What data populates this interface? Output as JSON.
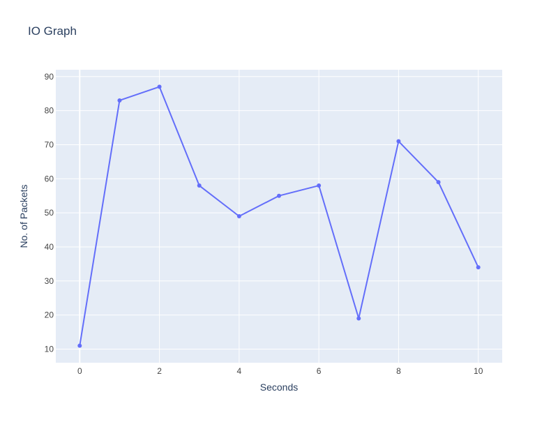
{
  "chart_data": {
    "type": "line",
    "title": "IO Graph",
    "xlabel": "Seconds",
    "ylabel": "No. of Packets",
    "x": [
      0,
      1,
      2,
      3,
      4,
      5,
      6,
      7,
      8,
      9,
      10
    ],
    "series": [
      {
        "values": [
          11,
          83,
          87,
          58,
          49,
          55,
          58,
          19,
          71,
          59,
          34
        ]
      }
    ],
    "xlim": [
      -0.6,
      10.6
    ],
    "ylim": [
      6,
      92
    ],
    "x_ticks": [
      0,
      2,
      4,
      6,
      8,
      10
    ],
    "y_ticks": [
      10,
      20,
      30,
      40,
      50,
      60,
      70,
      80,
      90
    ],
    "grid": true,
    "legend": "none",
    "colors": {
      "plot_background": "#e5ecf6",
      "grid": "#ffffff",
      "line": "#636efa",
      "text": "#2a3f5f",
      "tick_text": "#444444"
    }
  }
}
